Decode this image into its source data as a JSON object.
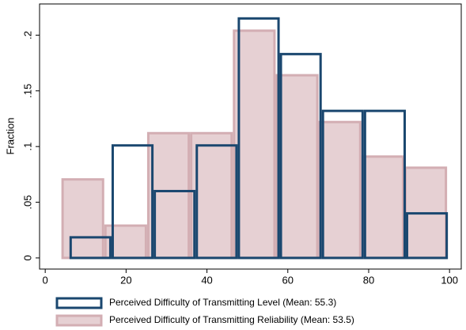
{
  "chart_data": {
    "type": "histogram",
    "ylabel": "Fraction",
    "xlim": [
      -1.4,
      102.9
    ],
    "ylim": [
      -0.01,
      0.228
    ],
    "xticks": [
      0,
      20,
      40,
      60,
      80,
      100
    ],
    "yticks": [
      0,
      {
        "value": 0.05,
        "label": ".05"
      },
      {
        "value": 0.1,
        "label": ".1"
      },
      {
        "value": 0.15,
        "label": ".15"
      },
      {
        "value": 0.2,
        "label": ".2"
      }
    ],
    "series": [
      {
        "name": "Perceived Difficulty of Transmitting Reliability (Mean: 53.5)",
        "color": "#d3aeb3",
        "fill": "#e6d0d3",
        "bins": [
          4,
          14.6,
          25.2,
          35.8,
          46.4,
          57,
          67.6,
          78.2,
          88.8,
          99.4
        ],
        "values": [
          0.0705,
          0.029,
          0.112,
          0.112,
          0.204,
          0.164,
          0.122,
          0.091,
          0.081
        ]
      },
      {
        "name": "Perceived Difficulty of Transmitting Level (Mean: 55.3)",
        "color": "#1a476f",
        "fill": "none",
        "bins": [
          6,
          16.4,
          26.8,
          37.2,
          47.6,
          58,
          68.4,
          78.8,
          89.2,
          99.6
        ],
        "values": [
          0.0185,
          0.101,
          0.06,
          0.101,
          0.215,
          0.183,
          0.132,
          0.132,
          0.04
        ]
      }
    ]
  }
}
